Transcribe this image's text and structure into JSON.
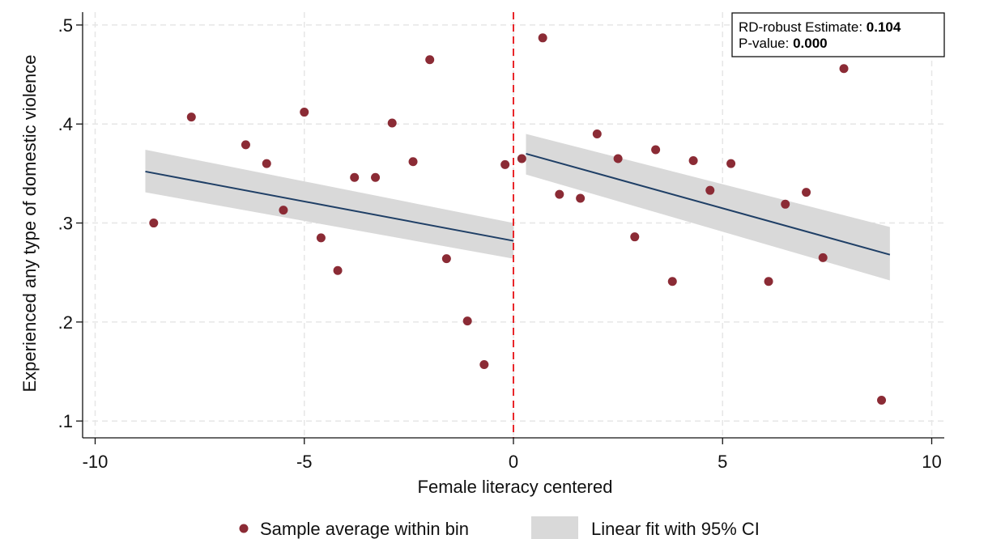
{
  "chart_data": {
    "type": "scatter",
    "xlabel": "Female literacy centered",
    "ylabel": "Experienced any type of domestic violence",
    "xlim": [
      -10.3,
      10.3
    ],
    "ylim": [
      0.083,
      0.513
    ],
    "x_ticks": [
      -10,
      -5,
      0,
      5,
      10
    ],
    "x_tick_labels": [
      "-10",
      "-5",
      "0",
      "5",
      "10"
    ],
    "y_ticks": [
      0.1,
      0.2,
      0.3,
      0.4,
      0.5
    ],
    "y_tick_labels": [
      ".1",
      ".2",
      ".3",
      ".4",
      ".5"
    ],
    "grid": true,
    "cutoff": 0,
    "colors": {
      "points": "#8b2b35",
      "fit_line": "#1f3f66",
      "ci_band": "#d9d9d9",
      "cutoff_line": "#e8262a",
      "grid": "#e6e6e6"
    },
    "series": [
      {
        "name": "Sample average within bin",
        "kind": "scatter",
        "x": [
          -8.6,
          -7.7,
          -6.4,
          -5.9,
          -5.5,
          -5.0,
          -4.6,
          -4.2,
          -3.8,
          -3.3,
          -2.9,
          -2.4,
          -2.0,
          -1.6,
          -1.1,
          -0.7,
          -0.2,
          0.2,
          0.7,
          1.1,
          1.6,
          2.0,
          2.5,
          2.9,
          3.4,
          3.8,
          4.3,
          4.7,
          5.2,
          6.1,
          6.5,
          7.0,
          7.4,
          7.9,
          8.8
        ],
        "y": [
          0.3,
          0.407,
          0.379,
          0.36,
          0.313,
          0.412,
          0.285,
          0.252,
          0.346,
          0.346,
          0.401,
          0.362,
          0.465,
          0.264,
          0.201,
          0.157,
          0.359,
          0.365,
          0.487,
          0.329,
          0.325,
          0.39,
          0.365,
          0.286,
          0.374,
          0.241,
          0.363,
          0.333,
          0.36,
          0.241,
          0.319,
          0.331,
          0.265,
          0.456,
          0.121
        ]
      },
      {
        "name": "Linear fit with 95% CI",
        "kind": "line_with_ci",
        "segments": [
          {
            "x": [
              -8.8,
              0.0
            ],
            "y": [
              0.352,
              0.282
            ],
            "ci_low": [
              0.331,
              0.264
            ],
            "ci_high": [
              0.374,
              0.3
            ]
          },
          {
            "x": [
              0.3,
              9.0
            ],
            "y": [
              0.37,
              0.268
            ],
            "ci_low": [
              0.349,
              0.242
            ],
            "ci_high": [
              0.39,
              0.296
            ]
          }
        ]
      }
    ],
    "annotation": {
      "line1_label": "RD-robust Estimate: ",
      "line1_value": "0.104",
      "line2_label": "P-value: ",
      "line2_value": "0.000"
    },
    "legend": {
      "placement": "bottom",
      "items": [
        "Sample average within bin",
        "Linear fit with 95% CI"
      ]
    }
  }
}
